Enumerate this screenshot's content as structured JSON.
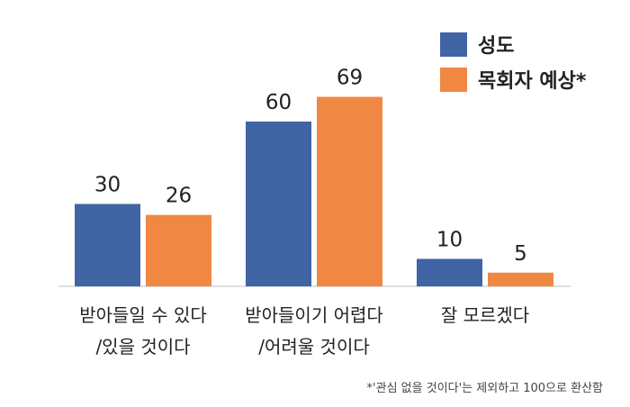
{
  "chart_data": {
    "type": "bar",
    "categories": [
      [
        "받아들일 수 있다",
        "/있을 것이다"
      ],
      [
        "받아들이기 어렵다",
        "/어려울 것이다"
      ],
      [
        "잘 모르겠다"
      ]
    ],
    "series": [
      {
        "name": "성도",
        "values": [
          30,
          60,
          10
        ],
        "color": "#4164A4"
      },
      {
        "name": "목회자 예상*",
        "values": [
          26,
          69,
          5
        ],
        "color": "#F08844"
      }
    ],
    "ylim": [
      0,
      72
    ],
    "legend": "top-right",
    "grid": false
  },
  "footnote": "*'관심 없을 것이다'는 제외하고 100으로 환산함"
}
